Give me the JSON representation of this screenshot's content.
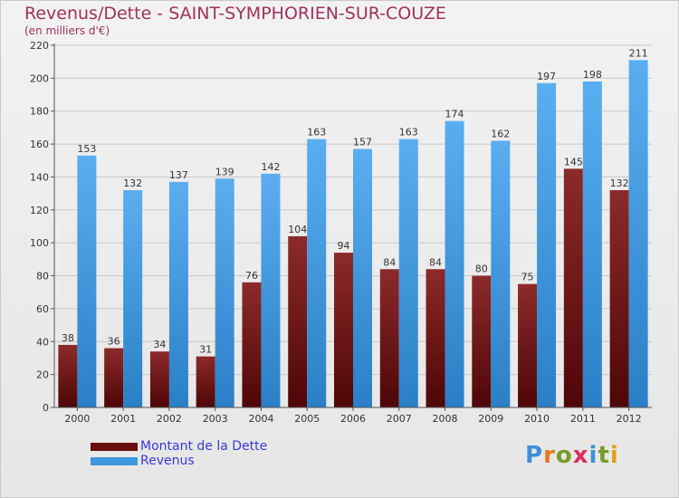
{
  "title": "Revenus/Dette - SAINT-SYMPHORIEN-SUR-COUZE",
  "subtitle": "(en milliers d'€)",
  "logo": {
    "text": "Proxiti"
  },
  "colors": {
    "dette": "#7a1818",
    "revenus": "#3e98e0",
    "title": "#a0325a",
    "legend_text": "#3a3ad8"
  },
  "legend": [
    {
      "label": "Montant de la Dette",
      "color": "#6a0d0d"
    },
    {
      "label": "Revenus",
      "color": "#3e98e0"
    }
  ],
  "chart_data": {
    "type": "bar",
    "categories": [
      "2000",
      "2001",
      "2002",
      "2003",
      "2004",
      "2005",
      "2006",
      "2007",
      "2008",
      "2009",
      "2010",
      "2011",
      "2012"
    ],
    "series": [
      {
        "name": "Montant de la Dette",
        "values": [
          38,
          36,
          34,
          31,
          76,
          104,
          94,
          84,
          84,
          80,
          75,
          145,
          132
        ]
      },
      {
        "name": "Revenus",
        "values": [
          153,
          132,
          137,
          139,
          142,
          163,
          157,
          163,
          174,
          162,
          197,
          198,
          211
        ]
      }
    ],
    "yticks": [
      0,
      20,
      40,
      60,
      80,
      100,
      120,
      140,
      160,
      180,
      200,
      220
    ],
    "ylim": [
      0,
      220
    ],
    "grid": true,
    "legend_position": "bottom-left"
  }
}
